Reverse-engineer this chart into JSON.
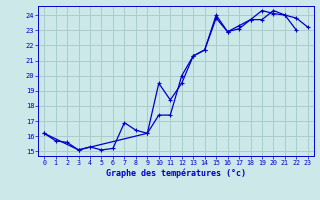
{
  "xlabel": "Graphe des températures (°c)",
  "background_color": "#cce8e8",
  "grid_color": "#aacccc",
  "line_color": "#0000cc",
  "xlim_min": -0.5,
  "xlim_max": 23.5,
  "ylim_min": 14.7,
  "ylim_max": 24.6,
  "yticks": [
    15,
    16,
    17,
    18,
    19,
    20,
    21,
    22,
    23,
    24
  ],
  "xticks": [
    0,
    1,
    2,
    3,
    4,
    5,
    6,
    7,
    8,
    9,
    10,
    11,
    12,
    13,
    14,
    15,
    16,
    17,
    18,
    19,
    20,
    21,
    22,
    23
  ],
  "zigzag_x": [
    0,
    1,
    2,
    3,
    4,
    5,
    6,
    7,
    8,
    9,
    10,
    11,
    12,
    13,
    14,
    15,
    16,
    17,
    18,
    19,
    20,
    21,
    22
  ],
  "zigzag_y": [
    16.2,
    15.7,
    15.6,
    15.1,
    15.3,
    15.1,
    15.2,
    16.9,
    16.4,
    16.2,
    19.5,
    18.4,
    19.5,
    21.3,
    21.7,
    23.8,
    22.9,
    23.3,
    23.7,
    24.3,
    24.1,
    24.0,
    23.0
  ],
  "trend_x": [
    0,
    3,
    9,
    10,
    11,
    12,
    13,
    14,
    15,
    16,
    17,
    18,
    19,
    20,
    21,
    22,
    23
  ],
  "trend_y": [
    16.2,
    15.1,
    16.2,
    17.4,
    17.4,
    20.0,
    21.3,
    21.7,
    24.0,
    22.9,
    23.1,
    23.7,
    23.7,
    24.3,
    24.0,
    23.8,
    23.2
  ]
}
